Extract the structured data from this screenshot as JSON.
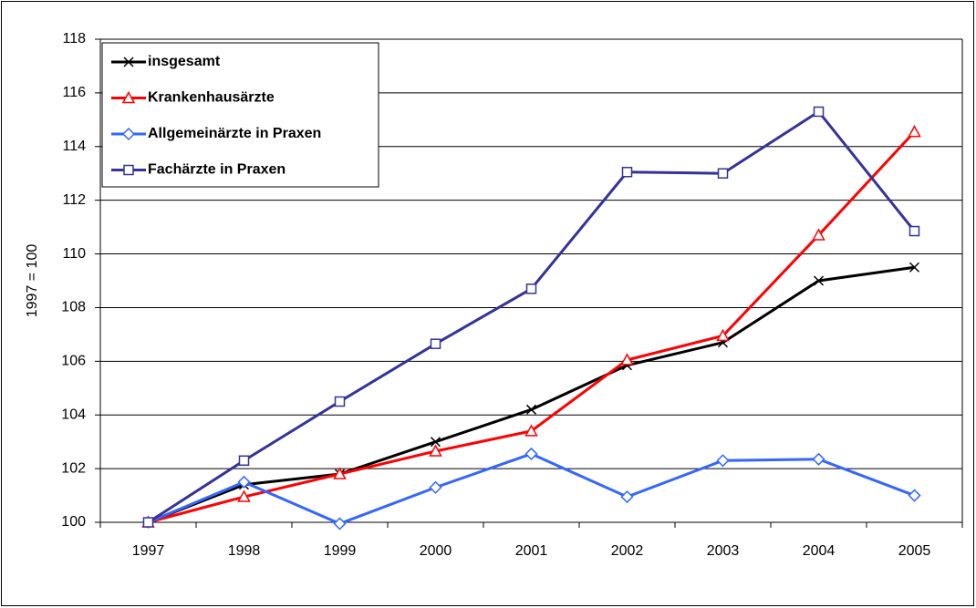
{
  "chart_data": {
    "type": "line",
    "ylabel": "1997 = 100",
    "categories": [
      "1997",
      "1998",
      "1999",
      "2000",
      "2001",
      "2002",
      "2003",
      "2004",
      "2005"
    ],
    "series": [
      {
        "name": "insgesamt",
        "color": "#000000",
        "marker": "x",
        "values": [
          100,
          101.4,
          101.8,
          103.0,
          104.2,
          105.85,
          106.7,
          109.0,
          109.5
        ]
      },
      {
        "name": "Krankenhausärzte",
        "color": "#ff0000",
        "marker": "triangle",
        "values": [
          100,
          100.95,
          101.8,
          102.65,
          103.4,
          106.05,
          106.95,
          110.7,
          114.55
        ]
      },
      {
        "name": "Allgemeinärzte in Praxen",
        "color": "#3366ff",
        "marker": "diamond",
        "values": [
          100,
          101.5,
          99.95,
          101.3,
          102.55,
          100.95,
          102.3,
          102.35,
          101.0
        ]
      },
      {
        "name": "Fachärzte in Praxen",
        "color": "#333399",
        "marker": "square",
        "values": [
          100,
          102.3,
          104.5,
          106.65,
          108.7,
          113.05,
          113.0,
          115.3,
          110.85
        ]
      }
    ],
    "ylim": [
      100,
      118
    ],
    "yticks": [
      100,
      102,
      104,
      106,
      108,
      110,
      112,
      114,
      116,
      118
    ],
    "grid": true,
    "legend": "upper left"
  }
}
